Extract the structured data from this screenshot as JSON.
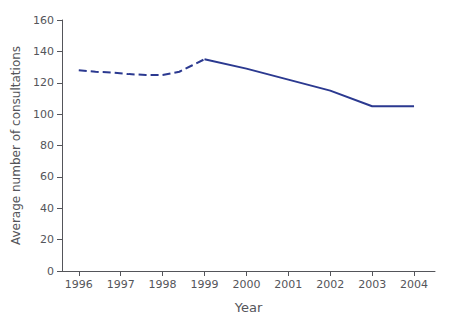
{
  "chart_data": {
    "type": "line",
    "xlabel": "Year",
    "ylabel": "Average number of consultations",
    "series": [
      {
        "x": [
          1996,
          1996.4,
          1996.8,
          1997.2,
          1997.6,
          1998,
          1998.4,
          1998.7,
          1999
        ],
        "values": [
          128,
          127,
          126.5,
          125.5,
          125,
          125,
          127,
          131,
          135
        ],
        "color": "#2b3990",
        "line_style": "dashed"
      },
      {
        "x": [
          1999,
          2000,
          2001,
          2002,
          2003,
          2004
        ],
        "values": [
          135,
          129,
          122,
          115,
          105,
          105
        ],
        "color": "#2b3990",
        "line_style": "solid"
      }
    ],
    "xlim": [
      1995.6,
      2004.5
    ],
    "xticks": [
      1996,
      1997,
      1998,
      1999,
      2000,
      2001,
      2002,
      2003,
      2004
    ],
    "ylim": [
      0,
      160
    ],
    "yticks": [
      0,
      20,
      40,
      60,
      80,
      100,
      120,
      140,
      160
    ],
    "grid": false
  }
}
